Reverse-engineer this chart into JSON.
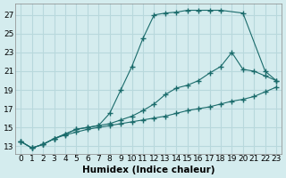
{
  "xlabel": "Humidex (Indice chaleur)",
  "bg_color": "#d4ecee",
  "grid_color": "#b8d8dc",
  "line_color": "#1a6b6b",
  "x_ticks": [
    0,
    1,
    2,
    3,
    4,
    5,
    6,
    7,
    8,
    9,
    10,
    11,
    12,
    13,
    14,
    15,
    16,
    17,
    18,
    19,
    20,
    21,
    22,
    23
  ],
  "y_ticks": [
    13,
    15,
    17,
    19,
    21,
    23,
    25,
    27
  ],
  "xlim": [
    -0.5,
    23.5
  ],
  "ylim": [
    12.2,
    28.2
  ],
  "series1_x": [
    0,
    1,
    2,
    3,
    4,
    5,
    6,
    7,
    8,
    9,
    10,
    11,
    12,
    13,
    14,
    15,
    16,
    17,
    18,
    20,
    22,
    23
  ],
  "series1_y": [
    13.5,
    12.8,
    13.2,
    13.8,
    14.3,
    14.8,
    15.0,
    15.2,
    16.5,
    19.0,
    21.5,
    24.5,
    27.0,
    27.2,
    27.3,
    27.5,
    27.5,
    27.5,
    27.5,
    27.2,
    21.0,
    20.0
  ],
  "series2_x": [
    0,
    1,
    2,
    3,
    4,
    5,
    6,
    7,
    8,
    9,
    10,
    11,
    12,
    13,
    14,
    15,
    16,
    17,
    18,
    19,
    20,
    21,
    22,
    23
  ],
  "series2_y": [
    13.5,
    12.8,
    13.2,
    13.8,
    14.3,
    14.8,
    15.0,
    15.2,
    15.4,
    15.8,
    16.2,
    16.8,
    17.5,
    18.5,
    19.2,
    19.5,
    20.0,
    20.8,
    21.5,
    23.0,
    21.2,
    21.0,
    20.5,
    20.0
  ],
  "series3_x": [
    0,
    1,
    2,
    3,
    4,
    5,
    6,
    7,
    8,
    9,
    10,
    11,
    12,
    13,
    14,
    15,
    16,
    17,
    18,
    19,
    20,
    21,
    22,
    23
  ],
  "series3_y": [
    13.5,
    12.8,
    13.2,
    13.8,
    14.2,
    14.5,
    14.8,
    15.0,
    15.2,
    15.4,
    15.6,
    15.8,
    16.0,
    16.2,
    16.5,
    16.8,
    17.0,
    17.2,
    17.5,
    17.8,
    18.0,
    18.3,
    18.8,
    19.3
  ],
  "xlabel_fontsize": 7.5,
  "tick_fontsize": 6.5
}
